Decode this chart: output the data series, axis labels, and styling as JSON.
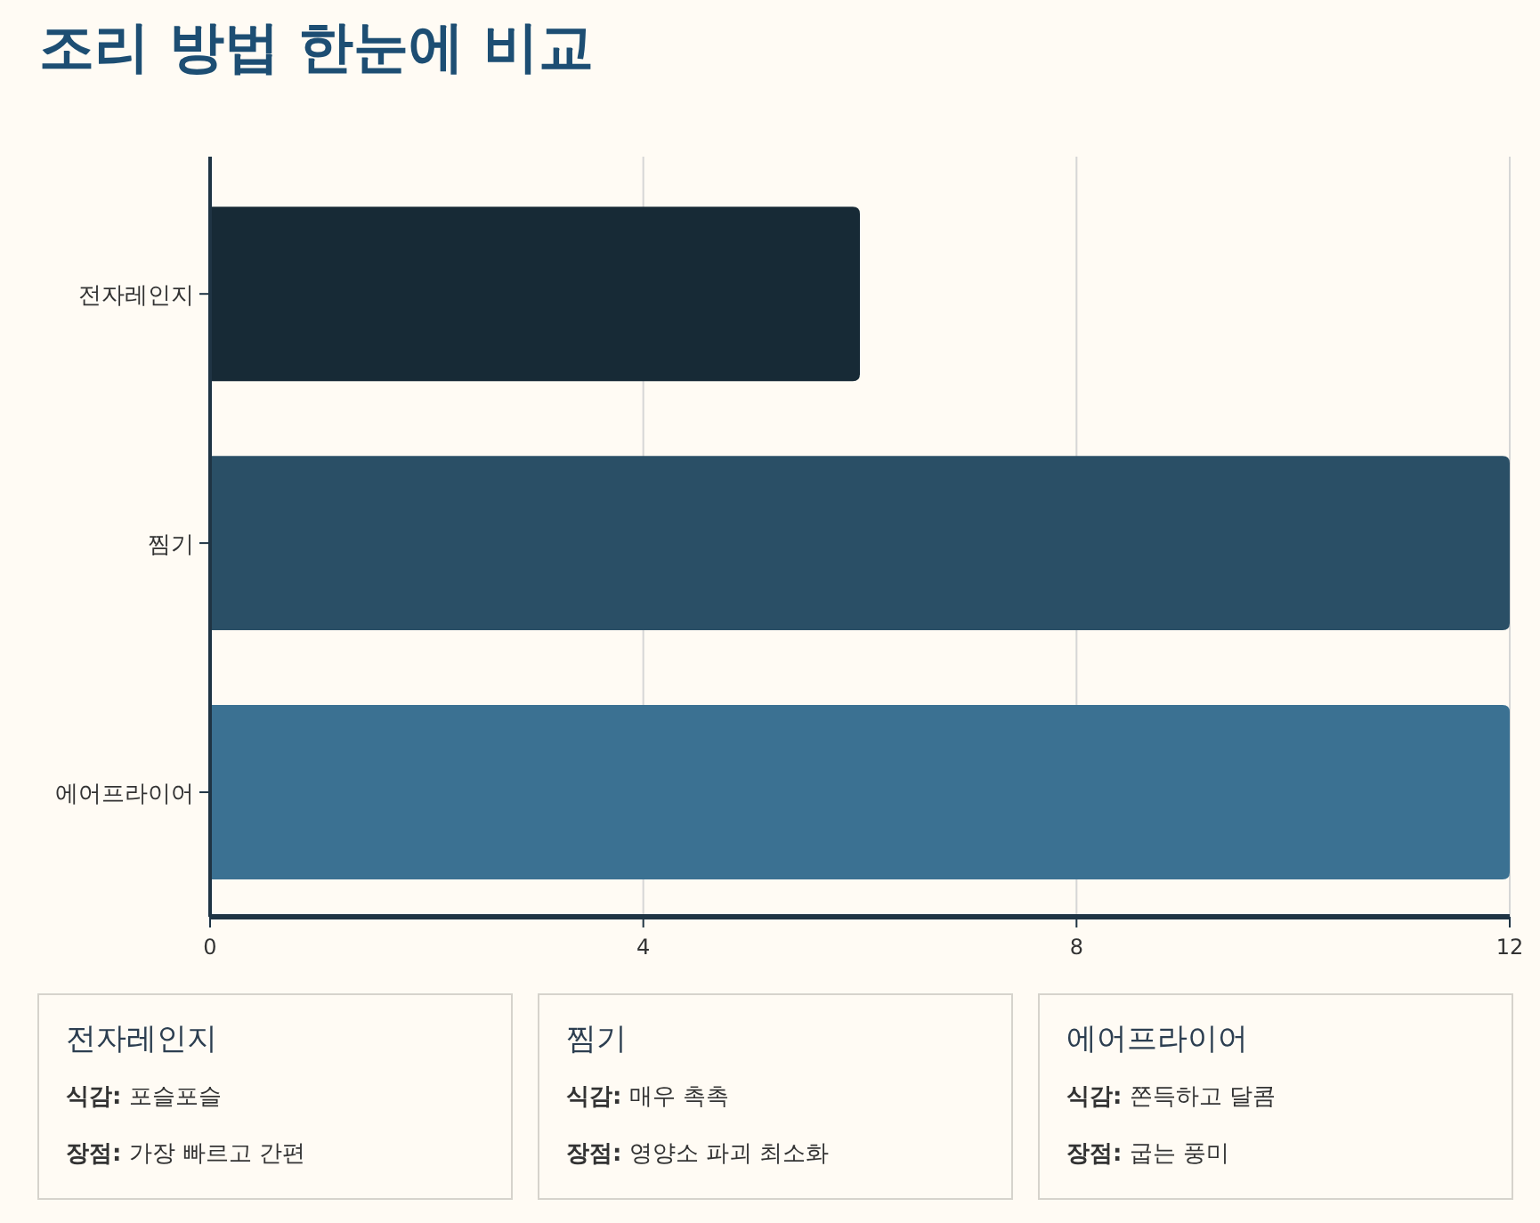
{
  "chart_data": [
    {
      "type": "bar",
      "title": "조리 방법 한눈에 비교",
      "orientation": "horizontal",
      "categories": [
        "전자레인지",
        "찜기",
        "에어프라이어"
      ],
      "values": [
        6,
        12,
        12
      ],
      "colors": [
        "#172a36",
        "#2a4f66",
        "#3b7192"
      ],
      "xlim": [
        0,
        12
      ],
      "xticks": [
        0,
        4,
        8,
        12
      ],
      "grid": "x"
    },
    {
      "type": "other",
      "annotations": [
        "전자레인지",
        "**식감:** 포슬포슬",
        "**장점:** 가장 빠르고 간편",
        "찜기",
        "**식감:** 매우 촉촉",
        "**장점:** 영양소 파괴 최소화",
        "에어프라이어",
        "**식감:** 쫀득하고 달콤",
        "**장점:** 굽는 풍미"
      ]
    }
  ]
}
